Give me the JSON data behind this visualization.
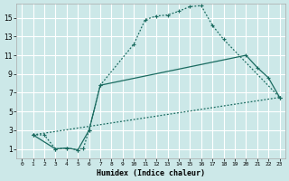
{
  "xlabel": "Humidex (Indice chaleur)",
  "bg_color": "#cce8e8",
  "grid_color": "#ffffff",
  "line_color": "#1a6b60",
  "xlim": [
    -0.5,
    23.5
  ],
  "ylim": [
    0,
    16.5
  ],
  "xticks": [
    0,
    1,
    2,
    3,
    4,
    5,
    6,
    7,
    8,
    9,
    10,
    11,
    12,
    13,
    14,
    15,
    16,
    17,
    18,
    19,
    20,
    21,
    22,
    23
  ],
  "yticks": [
    1,
    3,
    5,
    7,
    9,
    11,
    13,
    15
  ],
  "curve1_x": [
    1,
    2,
    3,
    4,
    5,
    5.5,
    6,
    7,
    10,
    11,
    12,
    13,
    14,
    15,
    16,
    17,
    18,
    23
  ],
  "curve1_y": [
    2.5,
    2.5,
    1.0,
    1.1,
    0.9,
    1.1,
    3.0,
    7.8,
    12.2,
    14.8,
    15.2,
    15.3,
    15.7,
    16.2,
    16.3,
    14.2,
    12.7,
    6.5
  ],
  "curve2_x": [
    1,
    3,
    4,
    5,
    6,
    7,
    20,
    21,
    22,
    23
  ],
  "curve2_y": [
    2.5,
    1.0,
    1.1,
    0.9,
    3.0,
    7.8,
    11.0,
    9.7,
    8.6,
    6.5
  ],
  "curve3_x": [
    1,
    23
  ],
  "curve3_y": [
    2.5,
    6.5
  ]
}
